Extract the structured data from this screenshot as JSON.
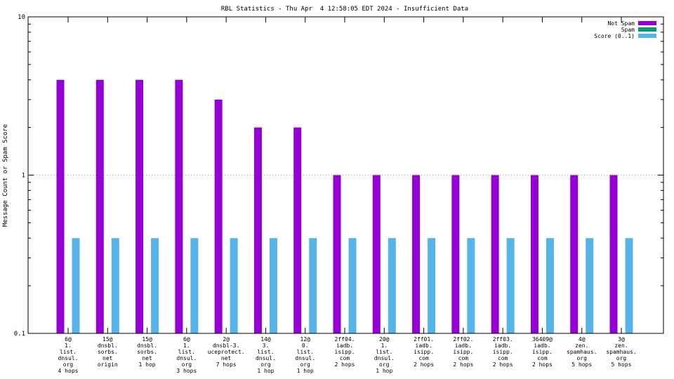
{
  "chart_data": {
    "type": "bar",
    "title": "RBL Statistics - Thu Apr  4 12:58:05 EDT 2024 - Insufficient Data",
    "ylabel": "Message Count or Spam Score",
    "xlabel": "",
    "yscale": "log",
    "ylim": [
      0.1,
      10
    ],
    "yticks": [
      {
        "value": 0.1,
        "label": "0.1"
      },
      {
        "value": 1,
        "label": "1"
      },
      {
        "value": 10,
        "label": "10"
      }
    ],
    "grid": true,
    "legend_position": "top-right",
    "categories": [
      [
        "6@",
        "1.",
        "list.",
        "dnsul.",
        "org",
        "4 hops"
      ],
      [
        "15@",
        "dnsbl.",
        "sorbs.",
        "net",
        "origin"
      ],
      [
        "15@",
        "dnsbl.",
        "sorbs.",
        "net",
        "1 hop"
      ],
      [
        "6@",
        "1.",
        "list.",
        "dnsul.",
        "org",
        "3 hops"
      ],
      [
        "2@",
        "dnsbl-3.",
        "uceprotect.",
        "net",
        "7 hops"
      ],
      [
        "14@",
        "3.",
        "list.",
        "dnsul.",
        "org",
        "1 hop"
      ],
      [
        "12@",
        "0.",
        "list.",
        "dnsul.",
        "org",
        "1 hop"
      ],
      [
        "2ff04.",
        "iadb.",
        "isipp.",
        "com",
        "2 hops"
      ],
      [
        "20@",
        "1.",
        "list.",
        "dnsul.",
        "org",
        "1 hop"
      ],
      [
        "2ff01.",
        "iadb.",
        "isipp.",
        "com",
        "2 hops"
      ],
      [
        "2ff02.",
        "iadb.",
        "isipp.",
        "com",
        "2 hops"
      ],
      [
        "2ff03.",
        "iadb.",
        "isipp.",
        "com",
        "2 hops"
      ],
      [
        "36409@",
        "iadb.",
        "isipp.",
        "com",
        "2 hops"
      ],
      [
        "4@",
        "zen.",
        "spamhaus.",
        "org",
        "5 hops"
      ],
      [
        "3@",
        "zen.",
        "spamhaus.",
        "org",
        "5 hops"
      ]
    ],
    "series": [
      {
        "name": "Not Spam",
        "color": "#9400d3",
        "values": [
          4,
          4,
          4,
          4,
          3,
          2,
          2,
          1,
          1,
          1,
          1,
          1,
          1,
          1,
          1
        ]
      },
      {
        "name": "Spam",
        "color": "#009e73",
        "values": [
          0,
          0,
          0,
          0,
          0,
          0,
          0,
          0,
          0,
          0,
          0,
          0,
          0,
          0,
          0
        ]
      },
      {
        "name": "Score (0..1)",
        "color": "#56b4e9",
        "values": [
          0.4,
          0.4,
          0.4,
          0.4,
          0.4,
          0.4,
          0.4,
          0.4,
          0.4,
          0.4,
          0.4,
          0.4,
          0.4,
          0.4,
          0.4
        ]
      }
    ]
  }
}
